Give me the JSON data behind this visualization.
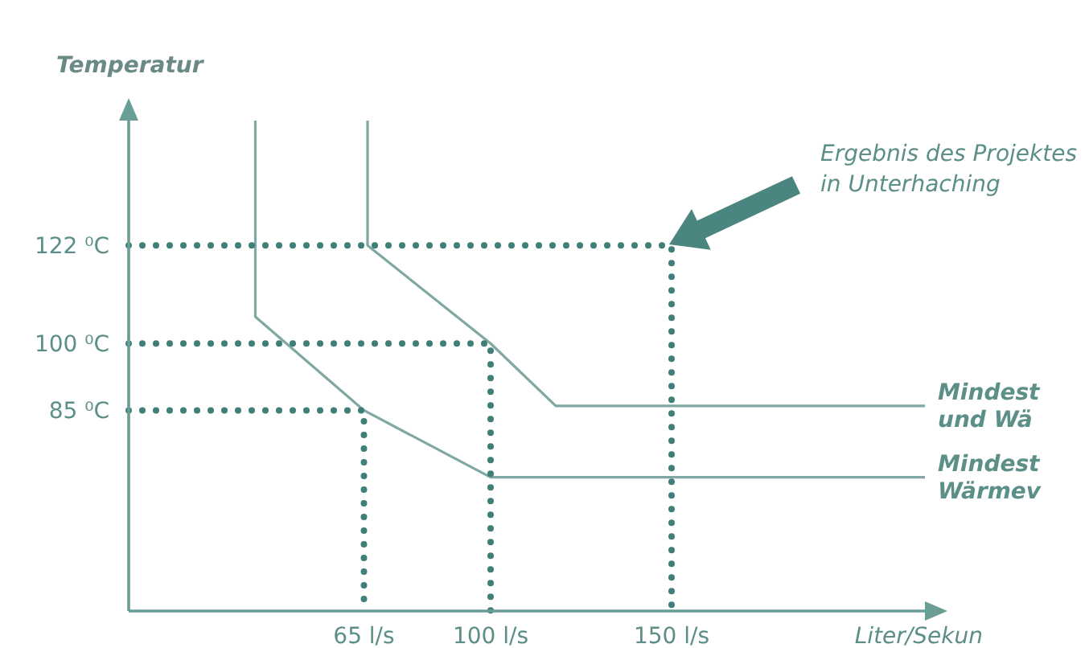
{
  "chart_data": {
    "type": "line",
    "xlabel": "Liter/Sekun",
    "ylabel": "Temperatur",
    "xlim": [
      0,
      220
    ],
    "ylim": [
      40,
      150
    ],
    "xticks": [
      {
        "value": 65,
        "label": "65 l/s"
      },
      {
        "value": 100,
        "label": "100 l/s"
      },
      {
        "value": 150,
        "label": "150 l/s"
      }
    ],
    "yticks": [
      {
        "value": 85,
        "label": "85 ⁰C"
      },
      {
        "value": 100,
        "label": "100 ⁰C"
      },
      {
        "value": 122,
        "label": "122 ⁰C"
      }
    ],
    "grid": false,
    "marker": "none",
    "series": [
      {
        "name": "Mindest\nund Wä",
        "color": "#7fa8a3",
        "line_style": "solid",
        "x": [
          66,
          66,
          100,
          118,
          220
        ],
        "values": [
          150,
          122,
          100,
          86,
          86
        ]
      },
      {
        "name": "Mindest\nWärmev",
        "color": "#7fa8a3",
        "line_style": "solid",
        "x": [
          35,
          35,
          65,
          100,
          220
        ],
        "values": [
          150,
          106,
          85,
          70,
          70
        ]
      },
      {
        "color": "#3f7f78",
        "line_style": "dotted",
        "x": [
          0,
          150,
          150
        ],
        "values": [
          122,
          122,
          40
        ]
      },
      {
        "color": "#3f7f78",
        "line_style": "dotted",
        "x": [
          0,
          100,
          100
        ],
        "values": [
          100,
          100,
          40
        ]
      },
      {
        "color": "#3f7f78",
        "line_style": "dotted",
        "x": [
          0,
          65,
          65
        ],
        "values": [
          85,
          85,
          40
        ]
      }
    ],
    "annotations": [
      "Ergebnis des Projektes\nin Unterhaching"
    ]
  }
}
